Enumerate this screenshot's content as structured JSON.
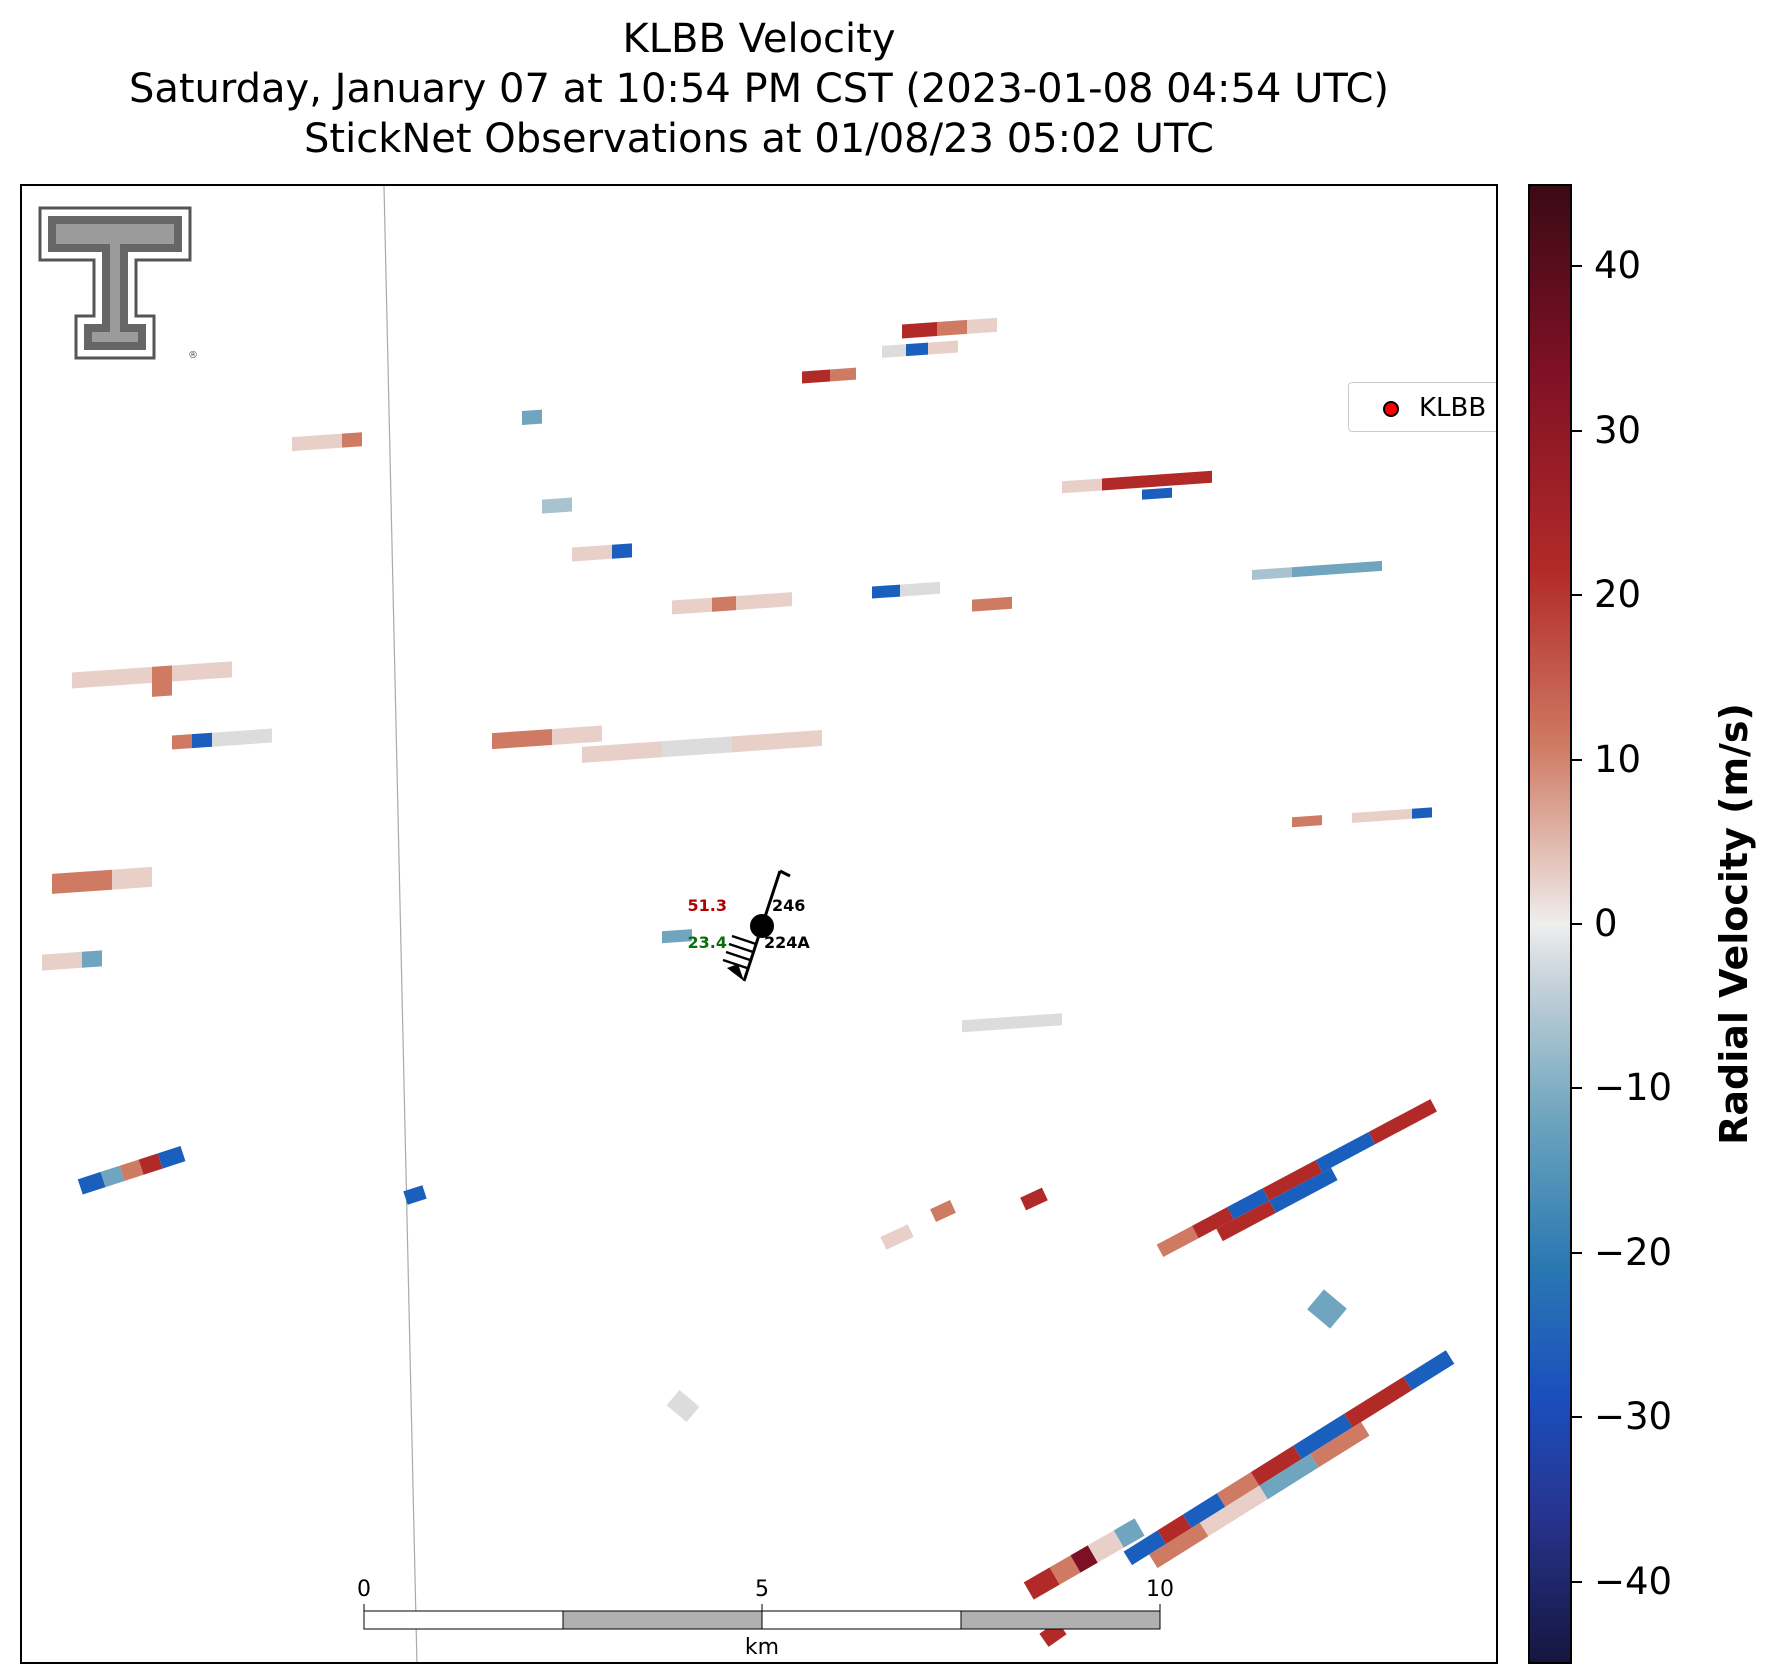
{
  "title": {
    "line1": "KLBB Velocity",
    "line2": "Saturday, January 07 at 10:54 PM CST (2023-01-08 04:54 UTC)",
    "line3": "StickNet Observations at 01/08/23 05:02 UTC"
  },
  "legend": {
    "label": "KLBB",
    "marker_color": "#ff0000"
  },
  "colorbar": {
    "label": "Radial Velocity (m/s)",
    "min": -45,
    "max": 45,
    "ticks": [
      "40",
      "30",
      "20",
      "10",
      "0",
      "−10",
      "−20",
      "−30",
      "−40"
    ],
    "tick_values": [
      40,
      30,
      20,
      10,
      0,
      -10,
      -20,
      -30,
      -40
    ]
  },
  "scalebar": {
    "labels": [
      "0",
      "5",
      "10"
    ],
    "unit": "km"
  },
  "station": {
    "temperature": "51.3",
    "dewpoint": "23.4",
    "id_top": "246",
    "id_bottom": "224A",
    "temp_color": "#b00000",
    "dew_color": "#0a6e0a"
  },
  "logo": {
    "name": "texas-tech-double-t-logo"
  },
  "colors": {
    "strong_outbound": "#b22a28",
    "moderate_outbound": "#cf7b64",
    "weak": "#e8d0c9",
    "near_zero": "#dcdcdc",
    "weak_inbound": "#a9c2cf",
    "moderate_inbound": "#6fa5be",
    "strong_inbound": "#1a5fbd"
  }
}
